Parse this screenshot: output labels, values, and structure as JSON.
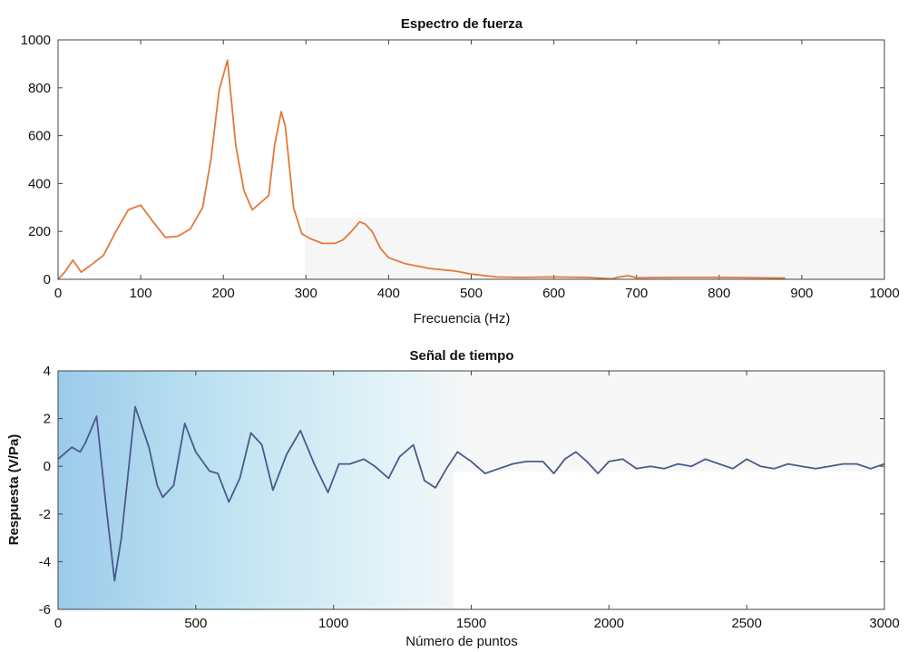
{
  "colors": {
    "spectrum_line": "#e07a3a",
    "time_line": "#4a5a8c",
    "time_bg_left": "#a9d3ee",
    "panel_bg": "#f7f7f7"
  },
  "chart_data": [
    {
      "type": "line",
      "title": "Espectro de fuerza",
      "xlabel": "Frecuencia (Hz)",
      "ylabel": "",
      "xlim": [
        0,
        1000
      ],
      "ylim": [
        0,
        1000
      ],
      "xticks": [
        0,
        100,
        200,
        300,
        400,
        500,
        600,
        700,
        800,
        900,
        1000
      ],
      "yticks": [
        0,
        200,
        400,
        600,
        800,
        1000
      ],
      "grid": false,
      "series": [
        {
          "x": [
            0,
            8,
            18,
            28,
            40,
            55,
            70,
            85,
            100,
            115,
            130,
            145,
            160,
            175,
            185,
            195,
            205,
            215,
            225,
            235,
            245,
            255,
            262,
            270,
            275,
            285,
            295,
            305,
            320,
            335,
            345,
            355,
            365,
            372,
            380,
            390,
            400,
            420,
            450,
            480,
            500,
            530,
            560,
            600,
            640,
            670,
            680,
            690,
            700,
            750,
            800,
            850,
            880
          ],
          "y": [
            0,
            30,
            80,
            30,
            60,
            100,
            200,
            290,
            310,
            240,
            175,
            180,
            210,
            300,
            500,
            790,
            915,
            560,
            370,
            290,
            320,
            350,
            560,
            700,
            640,
            300,
            190,
            170,
            150,
            150,
            165,
            200,
            240,
            230,
            200,
            130,
            90,
            65,
            45,
            35,
            22,
            10,
            8,
            10,
            8,
            2,
            10,
            15,
            6,
            8,
            8,
            6,
            5
          ]
        }
      ]
    },
    {
      "type": "line",
      "title": "Señal de tiempo",
      "xlabel": "Número de puntos",
      "ylabel": "Respuesta (V/Pa)",
      "xlim": [
        0,
        3000
      ],
      "ylim": [
        -6,
        4
      ],
      "xticks": [
        0,
        500,
        1000,
        1500,
        2000,
        2500,
        3000
      ],
      "yticks": [
        -6,
        -4,
        -2,
        0,
        2,
        4
      ],
      "grid": false,
      "series": [
        {
          "x": [
            0,
            50,
            80,
            100,
            140,
            170,
            205,
            230,
            280,
            330,
            360,
            380,
            420,
            460,
            500,
            550,
            580,
            620,
            660,
            700,
            740,
            780,
            830,
            880,
            930,
            980,
            1020,
            1060,
            1110,
            1150,
            1200,
            1240,
            1290,
            1330,
            1370,
            1410,
            1450,
            1500,
            1550,
            1600,
            1650,
            1700,
            1760,
            1800,
            1840,
            1880,
            1920,
            1960,
            2000,
            2050,
            2100,
            2150,
            2200,
            2250,
            2300,
            2350,
            2400,
            2450,
            2500,
            2550,
            2600,
            2650,
            2700,
            2750,
            2800,
            2850,
            2900,
            2950,
            3000
          ],
          "y": [
            0.3,
            0.8,
            0.6,
            1.0,
            2.1,
            -1.2,
            -4.8,
            -3.0,
            2.5,
            0.8,
            -0.8,
            -1.3,
            -0.8,
            1.8,
            0.6,
            -0.2,
            -0.3,
            -1.5,
            -0.5,
            1.4,
            0.9,
            -1.0,
            0.5,
            1.5,
            0.1,
            -1.1,
            0.1,
            0.1,
            0.3,
            0.0,
            -0.5,
            0.4,
            0.9,
            -0.6,
            -0.9,
            -0.1,
            0.6,
            0.2,
            -0.3,
            -0.1,
            0.1,
            0.2,
            0.2,
            -0.3,
            0.3,
            0.6,
            0.2,
            -0.3,
            0.2,
            0.3,
            -0.1,
            0.0,
            -0.1,
            0.1,
            0.0,
            0.3,
            0.1,
            -0.1,
            0.3,
            0.0,
            -0.1,
            0.1,
            0.0,
            -0.1,
            0.0,
            0.1,
            0.1,
            -0.1,
            0.1
          ]
        }
      ]
    }
  ]
}
